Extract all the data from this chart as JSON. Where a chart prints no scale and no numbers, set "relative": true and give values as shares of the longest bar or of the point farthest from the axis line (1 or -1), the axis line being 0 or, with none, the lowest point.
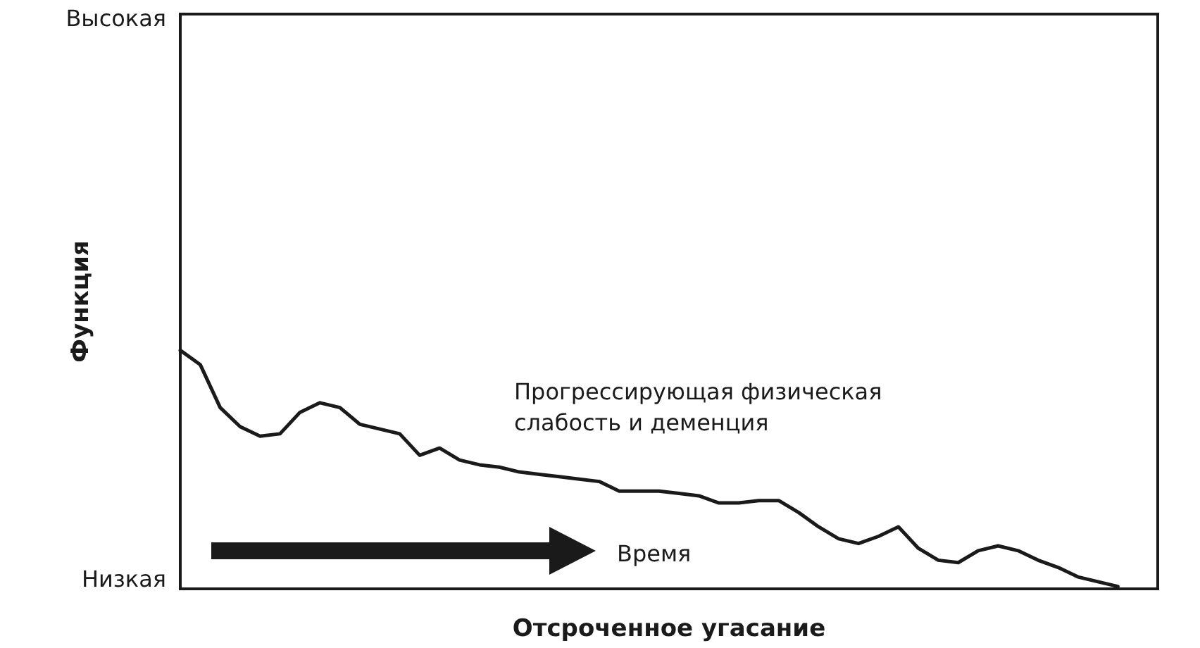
{
  "chart_data": {
    "type": "line",
    "xlabel": "Отсроченное угасание",
    "ylabel": "Функция",
    "annotations": [
      "Прогрессирующая физическая\nслабость и деменция",
      "Время",
      "Высокая",
      "Низкая"
    ],
    "relative": true,
    "grid": false,
    "marker": "none",
    "line_style": "solid",
    "categories": [
      null,
      null,
      null,
      null,
      null,
      null,
      null,
      null,
      null,
      null,
      null,
      null,
      null,
      null,
      null,
      null,
      null,
      null,
      null,
      null,
      null,
      null,
      null,
      null,
      null,
      null,
      null,
      null,
      null,
      null,
      null,
      null,
      null,
      null,
      null,
      null,
      null,
      null,
      null,
      null,
      null,
      null,
      null,
      null,
      null,
      null,
      null,
      null,
      null,
      null
    ],
    "series": [
      {
        "color": "#1a1a1a",
        "values": [
          1.0,
          0.94,
          0.76,
          0.68,
          0.64,
          0.65,
          0.74,
          0.78,
          0.76,
          0.69,
          0.67,
          0.65,
          0.56,
          0.59,
          0.54,
          0.52,
          0.51,
          0.49,
          0.48,
          0.47,
          0.46,
          0.45,
          0.41,
          0.41,
          0.41,
          0.4,
          0.39,
          0.36,
          0.36,
          0.37,
          0.37,
          0.32,
          0.26,
          0.21,
          0.19,
          0.22,
          0.26,
          0.17,
          0.12,
          0.11,
          0.16,
          0.18,
          0.16,
          0.12,
          0.09,
          0.05,
          0.03,
          0.01,
          null,
          null
        ]
      }
    ]
  }
}
